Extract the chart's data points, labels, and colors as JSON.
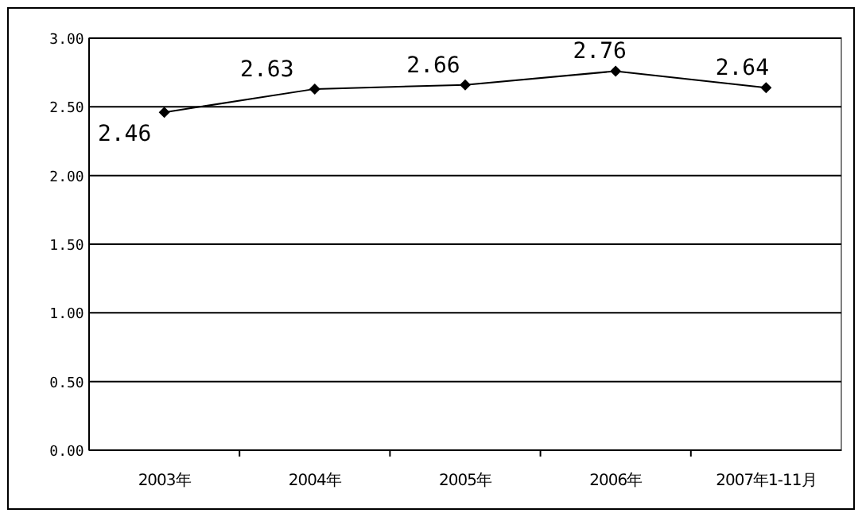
{
  "chart_data": {
    "type": "line",
    "categories": [
      "2003年",
      "2004年",
      "2005年",
      "2006年",
      "2007年1-11月"
    ],
    "series": [
      {
        "color": "#000000",
        "values": [
          2.46,
          2.63,
          2.66,
          2.76,
          2.64
        ]
      }
    ],
    "ylim": [
      0,
      3
    ],
    "yticks": [
      {
        "value": 0,
        "label": "0.00"
      },
      {
        "value": 0.5,
        "label": "0.50"
      },
      {
        "value": 1,
        "label": "1.00"
      },
      {
        "value": 1.5,
        "label": "1.50"
      },
      {
        "value": 2,
        "label": "2.00"
      },
      {
        "value": 2.5,
        "label": "2.50"
      },
      {
        "value": 3,
        "label": "3.00"
      }
    ],
    "grid": "y",
    "marker": "diamond",
    "line_style": "solid",
    "data_labels": true
  }
}
